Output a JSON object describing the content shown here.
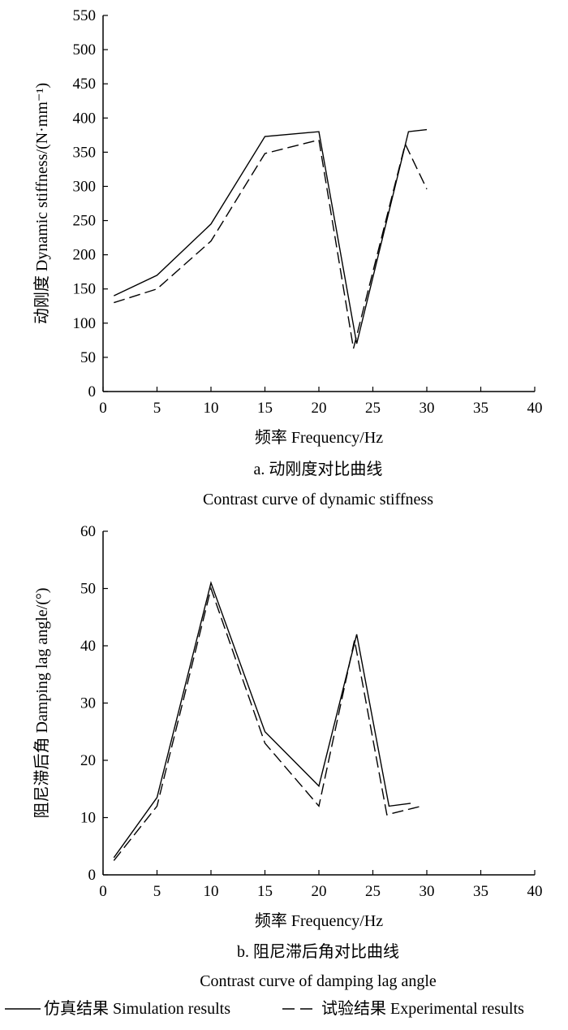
{
  "chart_data": [
    {
      "type": "line",
      "xlabel": "频率 Frequency/Hz",
      "ylabel": "动刚度 Dynamic stiffness/(N·mm⁻¹)",
      "xlim": [
        0,
        40
      ],
      "ylim": [
        0,
        550
      ],
      "xticks": [
        "0",
        "5",
        "10",
        "15",
        "20",
        "25",
        "30",
        "35",
        "40"
      ],
      "yticks": [
        "0",
        "50",
        "100",
        "150",
        "200",
        "250",
        "300",
        "350",
        "400",
        "450",
        "500",
        "550"
      ],
      "caption_cn": "a. 动刚度对比曲线",
      "caption_en": "Contrast curve of dynamic stiffness",
      "grid": false,
      "series": [
        {
          "name": "仿真结果 Simulation results",
          "style": "solid",
          "x": [
            1,
            5,
            10,
            15,
            20,
            23.5,
            28.3,
            30
          ],
          "y": [
            140,
            170,
            245,
            373,
            380,
            70,
            380,
            383
          ]
        },
        {
          "name": "试验结果 Experimental results",
          "style": "dashed",
          "x": [
            1,
            5,
            10,
            15,
            20,
            23.2,
            28,
            30
          ],
          "y": [
            130,
            150,
            220,
            348,
            368,
            63,
            362,
            296
          ]
        }
      ]
    },
    {
      "type": "line",
      "xlabel": "频率 Frequency/Hz",
      "ylabel": "阻尼滞后角 Damping lag angle/(°)",
      "xlim": [
        0,
        40
      ],
      "ylim": [
        0,
        60
      ],
      "xticks": [
        "0",
        "5",
        "10",
        "15",
        "20",
        "25",
        "30",
        "35",
        "40"
      ],
      "yticks": [
        "0",
        "10",
        "20",
        "30",
        "40",
        "50",
        "60"
      ],
      "caption_cn": "b. 阻尼滞后角对比曲线",
      "caption_en": "Contrast curve of damping lag angle",
      "grid": false,
      "series": [
        {
          "name": "仿真结果 Simulation results",
          "style": "solid",
          "x": [
            1,
            5,
            10,
            15,
            20,
            23.5,
            26.5,
            28.5
          ],
          "y": [
            3,
            13.5,
            51,
            25,
            15.5,
            42,
            12,
            12.5
          ]
        },
        {
          "name": "试验结果 Experimental results",
          "style": "dashed",
          "x": [
            1,
            5,
            10,
            15,
            20,
            23.3,
            26.3,
            29.5
          ],
          "y": [
            2.5,
            12,
            50,
            23,
            12,
            41,
            10.5,
            12
          ]
        }
      ]
    }
  ],
  "legend": {
    "solid_label": "仿真结果 Simulation results",
    "dashed_label": "试验结果 Experimental results"
  }
}
